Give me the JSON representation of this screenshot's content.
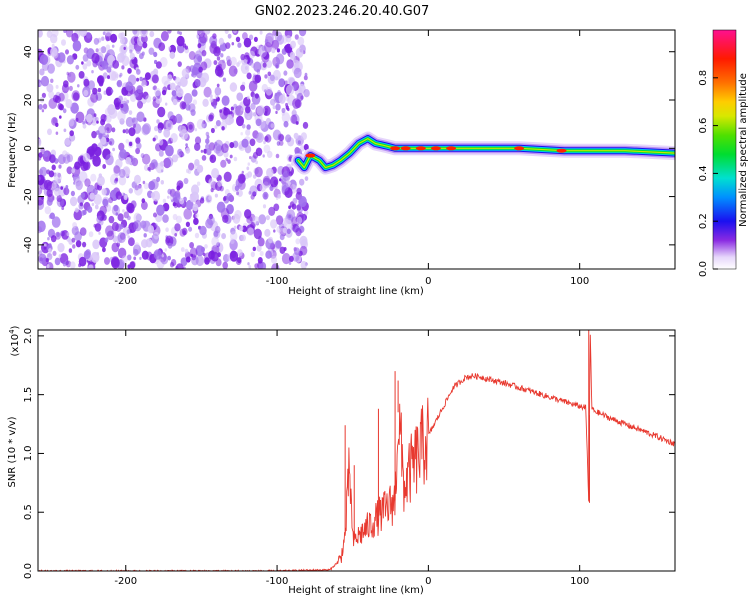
{
  "title": "GN02.2023.246.20.40.G07",
  "colors": {
    "snr_line": "#e8392f",
    "spectrogram_noise": "#8a2be2",
    "axes": "#000000"
  },
  "chart_data": [
    {
      "type": "heatmap",
      "name": "spectrogram",
      "xlabel": "Height of straight line (km)",
      "ylabel": "Frequency (Hz)",
      "xlim": [
        -258,
        163
      ],
      "ylim": [
        -50,
        49
      ],
      "x_ticks": [
        -200,
        -100,
        0,
        100
      ],
      "y_ticks": [
        -40,
        -20,
        0,
        20,
        40
      ],
      "noise_region_x": [
        -258,
        -83
      ],
      "ridge": [
        {
          "x": -86,
          "y": -5
        },
        {
          "x": -82,
          "y": -8
        },
        {
          "x": -78,
          "y": -3
        },
        {
          "x": -72,
          "y": -5
        },
        {
          "x": -68,
          "y": -8
        },
        {
          "x": -63,
          "y": -7
        },
        {
          "x": -58,
          "y": -5
        },
        {
          "x": -52,
          "y": -2
        },
        {
          "x": -46,
          "y": 2
        },
        {
          "x": -40,
          "y": 4
        },
        {
          "x": -35,
          "y": 2
        },
        {
          "x": -28,
          "y": 1
        },
        {
          "x": -22,
          "y": 0
        },
        {
          "x": -15,
          "y": 0
        },
        {
          "x": 0,
          "y": 0
        },
        {
          "x": 30,
          "y": 0
        },
        {
          "x": 60,
          "y": 0
        },
        {
          "x": 90,
          "y": -1
        },
        {
          "x": 130,
          "y": -1
        },
        {
          "x": 163,
          "y": -2
        }
      ],
      "colorbar": {
        "label": "Normalized spectral amplitude",
        "ticks": [
          0.0,
          0.2,
          0.4,
          0.6,
          0.8
        ],
        "range": [
          0,
          1
        ]
      }
    },
    {
      "type": "line",
      "name": "snr",
      "xlabel": "Height of straight line (km)",
      "ylabel": "SNR (10 * v/v)",
      "y_scale_label": "(x10",
      "y_scale_exp": "4",
      "xlim": [
        -258,
        163
      ],
      "ylim": [
        0,
        2.05
      ],
      "x_ticks": [
        -200,
        -100,
        0,
        100
      ],
      "y_ticks": [
        0.0,
        0.5,
        1.0,
        1.5,
        2.0
      ],
      "y_tick_labels": [
        "0.0",
        "0.5",
        "1.0",
        "1.5",
        "2.0"
      ],
      "series": [
        {
          "x": [
            -258,
            -100,
            -65,
            -58,
            -55,
            -52,
            -50,
            -46,
            -42,
            -38,
            -34,
            -30,
            -26,
            -22,
            -20,
            -16,
            -12,
            -8,
            -4,
            0,
            4,
            8,
            12,
            16,
            20,
            25,
            30,
            35,
            40,
            50,
            60,
            70,
            80,
            90,
            100,
            104,
            106,
            107,
            108,
            110,
            120,
            130,
            140,
            150,
            163
          ],
          "y": [
            0.0,
            0.0,
            0.01,
            0.1,
            0.3,
            0.9,
            0.25,
            0.3,
            0.35,
            0.4,
            0.45,
            0.5,
            0.55,
            0.6,
            1.35,
            0.7,
            0.85,
            0.95,
            1.05,
            1.15,
            1.25,
            1.35,
            1.45,
            1.55,
            1.6,
            1.65,
            1.66,
            1.65,
            1.63,
            1.6,
            1.56,
            1.52,
            1.48,
            1.44,
            1.4,
            1.39,
            0.6,
            2.05,
            1.38,
            1.36,
            1.3,
            1.25,
            1.2,
            1.15,
            1.08
          ]
        }
      ],
      "spikes": [
        {
          "x": -55,
          "y": 1.24
        },
        {
          "x": -49,
          "y": 0.9
        },
        {
          "x": -33,
          "y": 1.38
        },
        {
          "x": -22,
          "y": 1.7
        },
        {
          "x": -20,
          "y": 1.62
        },
        {
          "x": -10,
          "y": 1.05
        },
        {
          "x": 106,
          "y": 2.05
        },
        {
          "x": 106.5,
          "y": 0.58
        }
      ]
    }
  ]
}
